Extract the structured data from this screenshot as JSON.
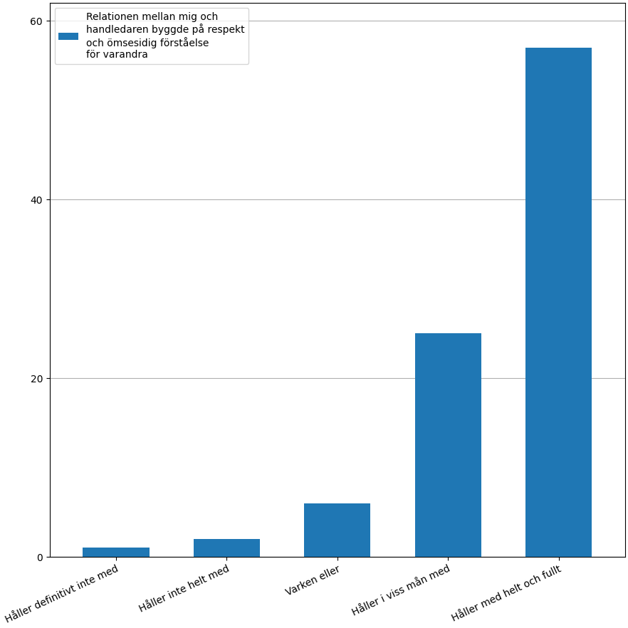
{
  "chart_data": {
    "type": "bar",
    "categories": [
      "Håller definitivt inte med",
      "Håller inte helt med",
      "Varken eller",
      "Håller i viss mån med",
      "Håller med helt och fullt"
    ],
    "series": [
      {
        "name": "Relationen mellan mig och\nhandledaren byggde på respekt\noch ömsesidig förståelse\nför varandra",
        "values": [
          1,
          2,
          6,
          25,
          57
        ]
      }
    ],
    "ylim": [
      0,
      62
    ],
    "yticks": [
      0,
      20,
      40,
      60
    ],
    "grid": true,
    "legend": "upper left"
  }
}
